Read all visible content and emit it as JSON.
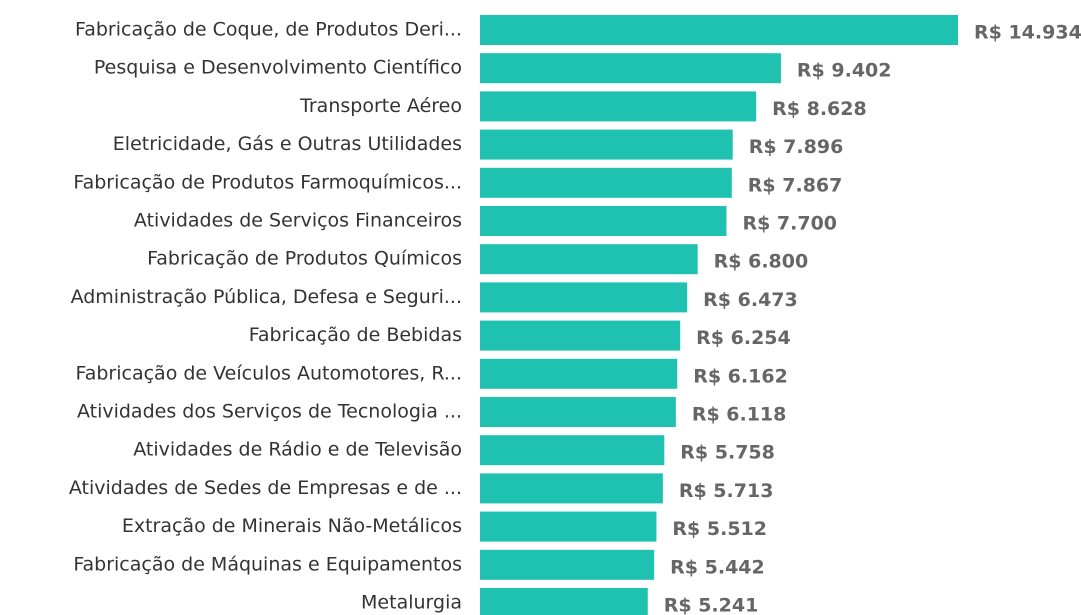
{
  "chart_data": {
    "type": "barh",
    "color": "#1fc1b0",
    "categories": [
      "Fabricação de Coque, de Produtos Deri...",
      "Pesquisa e Desenvolvimento Científico",
      "Transporte Aéreo",
      "Eletricidade, Gás e Outras Utilidades",
      "Fabricação de Produtos Farmoquímicos...",
      "Atividades de Serviços Financeiros",
      "Fabricação de Produtos Químicos",
      "Administração Pública, Defesa e Seguri...",
      "Fabricação de Bebidas",
      "Fabricação de Veículos Automotores, R...",
      "Atividades dos Serviços de Tecnologia ...",
      "Atividades de Rádio e de Televisão",
      "Atividades de Sedes de Empresas e de ...",
      "Extração de Minerais Não-Metálicos",
      "Fabricação de Máquinas e Equipamentos",
      "Metalurgia"
    ],
    "values": [
      14934,
      9402,
      8628,
      7896,
      7867,
      7700,
      6800,
      6473,
      6254,
      6162,
      6118,
      5758,
      5713,
      5512,
      5442,
      5241
    ],
    "value_labels": [
      "R$ 14.934",
      "R$ 9.402",
      "R$ 8.628",
      "R$ 7.896",
      "R$ 7.867",
      "R$ 7.700",
      "R$ 6.800",
      "R$ 6.473",
      "R$ 6.254",
      "R$ 6.162",
      "R$ 6.118",
      "R$ 5.758",
      "R$ 5.713",
      "R$ 5.512",
      "R$ 5.442",
      "R$ 5.241"
    ]
  }
}
